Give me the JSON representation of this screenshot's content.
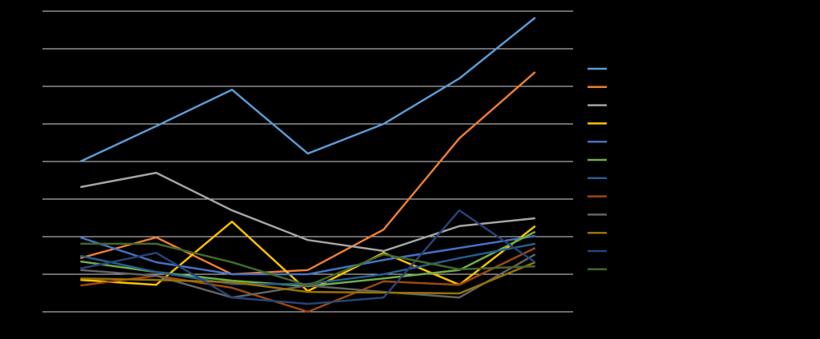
{
  "chart_data": {
    "type": "line",
    "categories": [
      null,
      null,
      null,
      null,
      null,
      null,
      null
    ],
    "ylim": [
      0,
      80
    ],
    "yticks": [
      0,
      10,
      20,
      30,
      40,
      50,
      60,
      70,
      80
    ],
    "grid": true,
    "legend": "right",
    "series": [
      {
        "color": "#5b9bd5",
        "values": [
          40,
          49.4,
          59.1,
          42.1,
          50,
          62.1,
          78.3
        ]
      },
      {
        "color": "#ed7d31",
        "values": [
          14.3,
          19.8,
          10,
          11.1,
          21.9,
          46.2,
          63.8
        ]
      },
      {
        "color": "#a5a5a5",
        "values": [
          33.2,
          37,
          27,
          19.1,
          16.2,
          22.8,
          24.9
        ]
      },
      {
        "color": "#ffc000",
        "values": [
          8.5,
          7.2,
          24,
          5.5,
          15.7,
          7.2,
          22.8
        ]
      },
      {
        "color": "#4472c4",
        "values": [
          19.8,
          13.2,
          10,
          10,
          13.8,
          17,
          20.2
        ]
      },
      {
        "color": "#70ad47",
        "values": [
          13.4,
          10.6,
          8.3,
          6.8,
          8.9,
          11.1,
          21.3
        ]
      },
      {
        "color": "#255e91",
        "values": [
          14.9,
          10.6,
          7.4,
          7.4,
          10,
          14.3,
          18.1
        ]
      },
      {
        "color": "#9e480e",
        "values": [
          7,
          9.6,
          6.4,
          0,
          8.1,
          7.2,
          17
        ]
      },
      {
        "color": "#636363",
        "values": [
          11.1,
          9.6,
          3.8,
          7,
          5.3,
          3.8,
          15.3
        ]
      },
      {
        "color": "#997300",
        "values": [
          8.9,
          8.5,
          7.9,
          5.3,
          5.1,
          4.9,
          13.2
        ]
      },
      {
        "color": "#264478",
        "values": [
          11.5,
          15.7,
          3.8,
          2.1,
          3.8,
          27,
          13.2
        ]
      },
      {
        "color": "#43682b",
        "values": [
          18.1,
          18.1,
          13.2,
          7,
          15.3,
          11.3,
          12.1
        ]
      }
    ]
  }
}
